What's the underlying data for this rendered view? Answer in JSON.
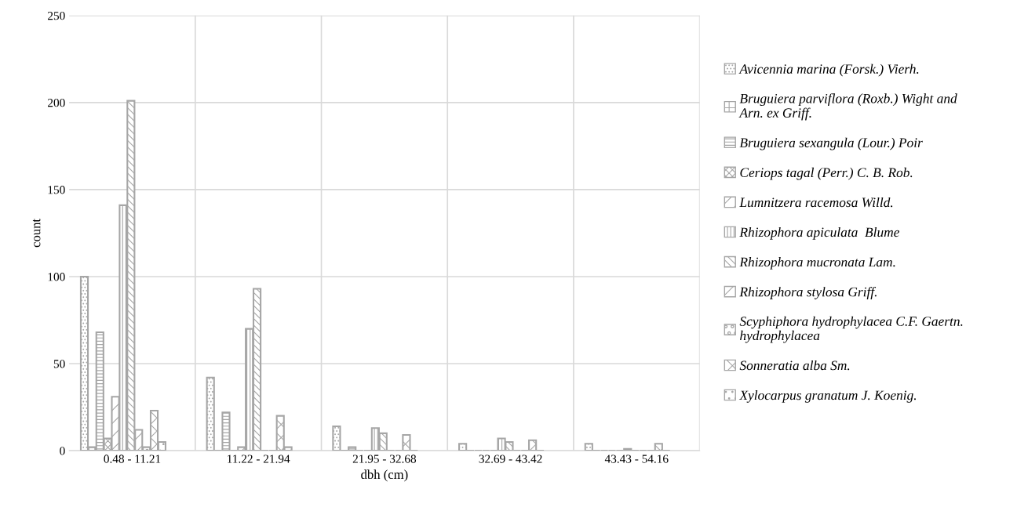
{
  "chart_data": {
    "type": "bar",
    "xlabel": "dbh (cm)",
    "ylabel": "count",
    "categories": [
      "0.48 - 11.21",
      "11.22 - 21.94",
      "21.95 - 32.68",
      "32.69 - 43.42",
      "43.43 - 54.16"
    ],
    "series": [
      {
        "name": "Avicennia marina (Forsk.) Vierh.",
        "color": "#a6a6a6",
        "values": [
          100,
          42,
          14,
          4,
          4
        ]
      },
      {
        "name": "Bruguiera parviflora (Roxb.) Wight and Arn. ex Griff.",
        "color": "#a6a6a6",
        "values": [
          2,
          0,
          0,
          0,
          0
        ]
      },
      {
        "name": "Bruguiera sexangula (Lour.) Poir",
        "color": "#a6a6a6",
        "values": [
          68,
          22,
          2,
          0,
          0
        ]
      },
      {
        "name": "Ceriops tagal (Perr.) C. B. Rob.",
        "color": "#a6a6a6",
        "values": [
          7,
          0,
          0,
          0,
          0
        ]
      },
      {
        "name": "Lumnitzera racemosa Willd.",
        "color": "#a6a6a6",
        "values": [
          31,
          2,
          0,
          0,
          0
        ]
      },
      {
        "name": "Rhizophora apiculata  Blume",
        "color": "#a6a6a6",
        "values": [
          141,
          70,
          13,
          7,
          1
        ]
      },
      {
        "name": "Rhizophora mucronata Lam.",
        "color": "#a6a6a6",
        "values": [
          201,
          93,
          10,
          5,
          0
        ]
      },
      {
        "name": "Rhizophora stylosa Griff.",
        "color": "#a6a6a6",
        "values": [
          12,
          0,
          0,
          0,
          0
        ]
      },
      {
        "name": "Scyphiphora hydrophylacea C.F. Gaertn. hydrophylacea",
        "color": "#a6a6a6",
        "values": [
          2,
          0,
          0,
          0,
          0
        ]
      },
      {
        "name": "Sonneratia alba Sm.",
        "color": "#a6a6a6",
        "values": [
          23,
          20,
          9,
          6,
          4
        ]
      },
      {
        "name": "Xylocarpus granatum J. Koenig.",
        "color": "#a6a6a6",
        "values": [
          5,
          2,
          0,
          0,
          0
        ]
      }
    ],
    "ylim": [
      0,
      250
    ],
    "yticks": [
      0,
      50,
      100,
      150,
      200,
      250
    ],
    "grid": true,
    "legend": "right"
  }
}
